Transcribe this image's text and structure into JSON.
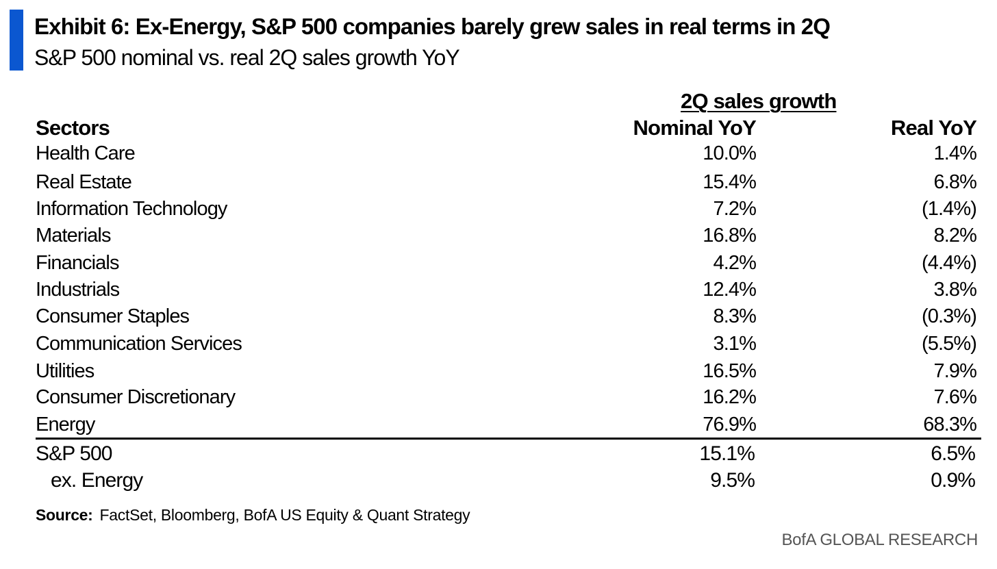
{
  "header": {
    "title": "Exhibit 6: Ex-Energy, S&P 500 companies barely grew sales in real terms in 2Q",
    "subtitle": "S&P 500 nominal vs. real 2Q sales growth YoY"
  },
  "table": {
    "group_header": "2Q sales growth",
    "columns": {
      "sectors": "Sectors",
      "nominal": "Nominal YoY",
      "real": "Real YoY"
    },
    "rows": [
      {
        "sector": "Health Care",
        "nominal": "10.0%",
        "real": "1.4%"
      },
      {
        "sector": "Real Estate",
        "nominal": "15.4%",
        "real": "6.8%"
      },
      {
        "sector": "Information Technology",
        "nominal": "7.2%",
        "real": "(1.4%)"
      },
      {
        "sector": "Materials",
        "nominal": "16.8%",
        "real": "8.2%"
      },
      {
        "sector": "Financials",
        "nominal": "4.2%",
        "real": "(4.4%)"
      },
      {
        "sector": "Industrials",
        "nominal": "12.4%",
        "real": "3.8%"
      },
      {
        "sector": "Consumer Staples",
        "nominal": "8.3%",
        "real": "(0.3%)"
      },
      {
        "sector": "Communication Services",
        "nominal": "3.1%",
        "real": "(5.5%)"
      },
      {
        "sector": "Utilities",
        "nominal": "16.5%",
        "real": "7.9%"
      },
      {
        "sector": "Consumer Discretionary",
        "nominal": "16.2%",
        "real": "7.6%"
      },
      {
        "sector": "Energy",
        "nominal": "76.9%",
        "real": "68.3%"
      }
    ],
    "totals": [
      {
        "sector": "S&P 500",
        "nominal": "15.1%",
        "real": "6.5%"
      },
      {
        "sector": "ex. Energy",
        "nominal": "9.5%",
        "real": "0.9%"
      }
    ]
  },
  "footer": {
    "source_label": "Source:",
    "source_text": "FactSet, Bloomberg, BofA US Equity & Quant Strategy",
    "brand": "BofA GLOBAL RESEARCH"
  },
  "colors": {
    "accent": "#0b57d0",
    "text": "#000000",
    "brand": "#555555"
  }
}
